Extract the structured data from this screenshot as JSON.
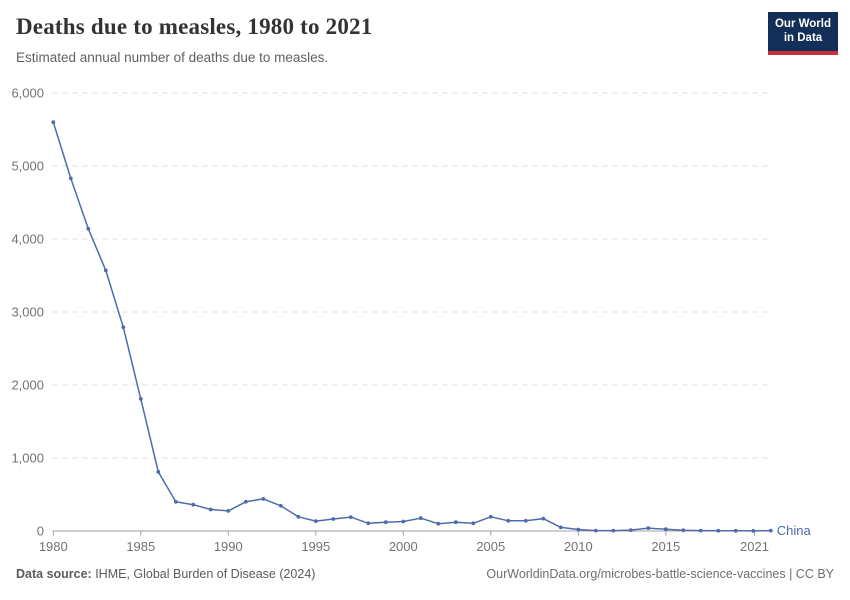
{
  "header": {
    "title": "Deaths due to measles, 1980 to 2021",
    "subtitle": "Estimated annual number of deaths due to measles.",
    "logo": {
      "line1": "Our World",
      "line2": "in Data",
      "bg_color": "#132e57",
      "accent_color": "#c5303e"
    }
  },
  "chart_data": {
    "type": "line",
    "title": "Deaths due to measles, 1980 to 2021",
    "xlabel": "",
    "ylabel": "",
    "x": [
      1980,
      1981,
      1982,
      1983,
      1984,
      1985,
      1986,
      1987,
      1988,
      1989,
      1990,
      1991,
      1992,
      1993,
      1994,
      1995,
      1996,
      1997,
      1998,
      1999,
      2000,
      2001,
      2002,
      2003,
      2004,
      2005,
      2006,
      2007,
      2008,
      2009,
      2010,
      2011,
      2012,
      2013,
      2014,
      2015,
      2016,
      2017,
      2018,
      2019,
      2020,
      2021
    ],
    "series": [
      {
        "name": "China",
        "color": "#4d6cac",
        "values": [
          5600,
          4830,
          4140,
          3570,
          2790,
          1810,
          810,
          400,
          360,
          295,
          275,
          400,
          440,
          345,
          195,
          135,
          165,
          190,
          105,
          120,
          130,
          175,
          100,
          120,
          105,
          195,
          140,
          140,
          170,
          50,
          20,
          5,
          5,
          12,
          40,
          25,
          10,
          5,
          3,
          3,
          2,
          6
        ]
      }
    ],
    "xlim": [
      1980,
      2021
    ],
    "ylim": [
      0,
      6000
    ],
    "yticks": [
      0,
      1000,
      2000,
      3000,
      4000,
      5000,
      6000
    ],
    "xticks": [
      1980,
      1985,
      1990,
      1995,
      2000,
      2005,
      2010,
      2015,
      2021
    ],
    "grid": "horizontal-dashed",
    "gridline_color": "#dedede",
    "axis_color": "#a0a0a0",
    "tick_label_color": "#737373",
    "legend": "entity-label-at-line-end"
  },
  "footer": {
    "datasource_label": "Data source:",
    "datasource_value": " IHME, Global Burden of Disease (2024)",
    "credit": "OurWorldinData.org/microbes-battle-science-vaccines | CC BY"
  }
}
